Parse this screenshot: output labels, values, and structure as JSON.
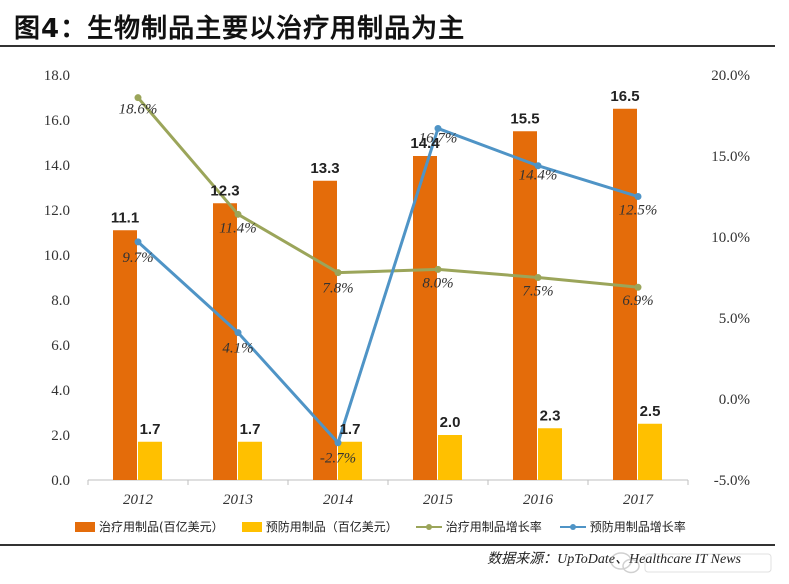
{
  "title": "图4：生物制品主要以治疗用制品为主",
  "source": "数据来源：UpToDate、Healthcare IT News",
  "colors": {
    "treatment_bar": "#E46C0A",
    "prevention_bar": "#FFC000",
    "treatment_growth": "#9BA55A",
    "prevention_growth": "#4F94C6"
  },
  "chart_data": {
    "type": "bar",
    "categories": [
      "2012",
      "2013",
      "2014",
      "2015",
      "2016",
      "2017"
    ],
    "series": [
      {
        "name": "治疗用制品(百亿美元）",
        "kind": "bar",
        "axis": "left",
        "values": [
          11.1,
          12.3,
          13.3,
          14.4,
          15.5,
          16.5
        ],
        "labels": [
          "11.1",
          "12.3",
          "13.3",
          "14.4",
          "15.5",
          "16.5"
        ]
      },
      {
        "name": "预防用制品（百亿美元）",
        "kind": "bar",
        "axis": "left",
        "values": [
          1.7,
          1.7,
          1.7,
          2.0,
          2.3,
          2.5
        ],
        "labels": [
          "1.7",
          "1.7",
          "1.7",
          "2.0",
          "2.3",
          "2.5"
        ]
      },
      {
        "name": "治疗用制品增长率",
        "kind": "line",
        "axis": "right",
        "values": [
          18.6,
          11.4,
          7.8,
          8.0,
          7.5,
          6.9
        ],
        "labels": [
          "18.6%",
          "11.4%",
          "7.8%",
          "8.0%",
          "7.5%",
          "6.9%"
        ]
      },
      {
        "name": "预防用制品增长率",
        "kind": "line",
        "axis": "right",
        "values": [
          9.7,
          4.1,
          -2.7,
          16.7,
          14.4,
          12.5
        ],
        "labels": [
          "9.7%",
          "4.1%",
          "-2.7%",
          "16.7%",
          "14.4%",
          "12.5%"
        ]
      }
    ],
    "y_left": {
      "min": 0,
      "max": 18,
      "ticks": [
        "0.0",
        "2.0",
        "4.0",
        "6.0",
        "8.0",
        "10.0",
        "12.0",
        "14.0",
        "16.0",
        "18.0"
      ]
    },
    "y_right": {
      "min": -5,
      "max": 20,
      "ticks": [
        "-5.0%",
        "0.0%",
        "5.0%",
        "10.0%",
        "15.0%",
        "20.0%"
      ]
    },
    "legend_position": "bottom",
    "grid": false
  }
}
